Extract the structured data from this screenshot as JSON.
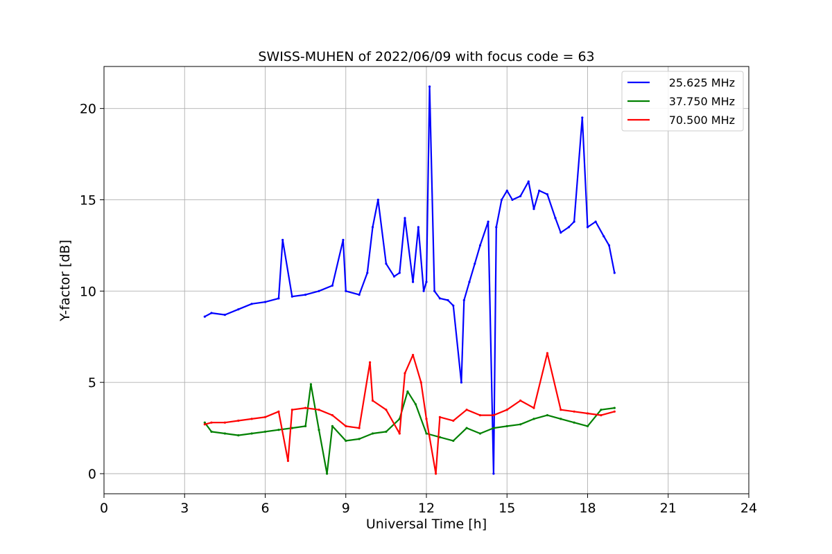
{
  "chart_data": {
    "type": "line",
    "title": "SWISS-MUHEN of 2022/06/09 with focus code = 63",
    "xlabel": "Universal Time [h]",
    "ylabel": "Y-factor [dB]",
    "xlim": [
      0,
      24
    ],
    "ylim": [
      -1.1,
      22.3
    ],
    "xticks": [
      0,
      3,
      6,
      9,
      12,
      15,
      18,
      21,
      24
    ],
    "yticks": [
      0,
      5,
      10,
      15,
      20
    ],
    "grid": true,
    "legend_position": "top-right",
    "series": [
      {
        "name": "25.625 MHz",
        "color": "#0000ff",
        "x": [
          3.75,
          4.0,
          4.5,
          5.0,
          5.5,
          6.0,
          6.5,
          6.65,
          7.0,
          7.5,
          8.0,
          8.5,
          8.9,
          9.0,
          9.5,
          9.8,
          10.0,
          10.2,
          10.5,
          10.8,
          11.0,
          11.2,
          11.5,
          11.7,
          11.9,
          12.0,
          12.12,
          12.3,
          12.5,
          12.8,
          13.0,
          13.3,
          13.4,
          13.6,
          13.8,
          14.0,
          14.3,
          14.5,
          14.6,
          14.8,
          15.0,
          15.2,
          15.5,
          15.8,
          16.0,
          16.2,
          16.5,
          16.8,
          17.0,
          17.3,
          17.5,
          17.8,
          18.0,
          18.3,
          18.6,
          18.8,
          19.0
        ],
        "y": [
          8.6,
          8.8,
          8.7,
          9.0,
          9.3,
          9.4,
          9.6,
          12.8,
          9.7,
          9.8,
          10.0,
          10.3,
          12.8,
          10.0,
          9.8,
          11.0,
          13.5,
          15.0,
          11.5,
          10.8,
          11.0,
          14.0,
          10.5,
          13.5,
          10.0,
          10.5,
          21.2,
          10.0,
          9.6,
          9.5,
          9.2,
          5.0,
          9.5,
          10.5,
          11.5,
          12.5,
          13.8,
          0.0,
          13.5,
          15.0,
          15.5,
          15.0,
          15.2,
          16.0,
          14.5,
          15.5,
          15.3,
          14.0,
          13.2,
          13.5,
          13.8,
          19.5,
          13.5,
          13.8,
          13.0,
          12.5,
          11.0
        ]
      },
      {
        "name": "37.750 MHz",
        "color": "#008000",
        "x": [
          3.75,
          4.0,
          4.5,
          5.0,
          5.5,
          6.0,
          6.5,
          7.0,
          7.5,
          7.7,
          8.0,
          8.3,
          8.5,
          9.0,
          9.5,
          10.0,
          10.5,
          11.0,
          11.3,
          11.6,
          12.0,
          12.5,
          13.0,
          13.5,
          14.0,
          14.5,
          15.0,
          15.5,
          16.0,
          16.5,
          17.0,
          17.5,
          18.0,
          18.5,
          19.0
        ],
        "y": [
          2.8,
          2.3,
          2.2,
          2.1,
          2.2,
          2.3,
          2.4,
          2.5,
          2.6,
          4.9,
          2.4,
          0.0,
          2.6,
          1.8,
          1.9,
          2.2,
          2.3,
          3.0,
          4.5,
          3.8,
          2.2,
          2.0,
          1.8,
          2.5,
          2.2,
          2.5,
          2.6,
          2.7,
          3.0,
          3.2,
          3.0,
          2.8,
          2.6,
          3.5,
          3.6
        ]
      },
      {
        "name": "70.500 MHz",
        "color": "#ff0000",
        "x": [
          3.75,
          4.0,
          4.5,
          5.0,
          5.5,
          6.0,
          6.5,
          6.85,
          7.0,
          7.5,
          8.0,
          8.5,
          9.0,
          9.5,
          9.9,
          10.0,
          10.5,
          11.0,
          11.2,
          11.5,
          11.8,
          12.0,
          12.35,
          12.5,
          13.0,
          13.5,
          14.0,
          14.5,
          15.0,
          15.5,
          16.0,
          16.5,
          17.0,
          17.5,
          18.0,
          18.5,
          19.0
        ],
        "y": [
          2.7,
          2.8,
          2.8,
          2.9,
          3.0,
          3.1,
          3.4,
          0.7,
          3.5,
          3.6,
          3.5,
          3.2,
          2.6,
          2.5,
          6.1,
          4.0,
          3.5,
          2.2,
          5.5,
          6.5,
          5.0,
          3.0,
          0.0,
          3.1,
          2.9,
          3.5,
          3.2,
          3.2,
          3.5,
          4.0,
          3.6,
          6.6,
          3.5,
          3.4,
          3.3,
          3.2,
          3.4
        ]
      }
    ]
  }
}
